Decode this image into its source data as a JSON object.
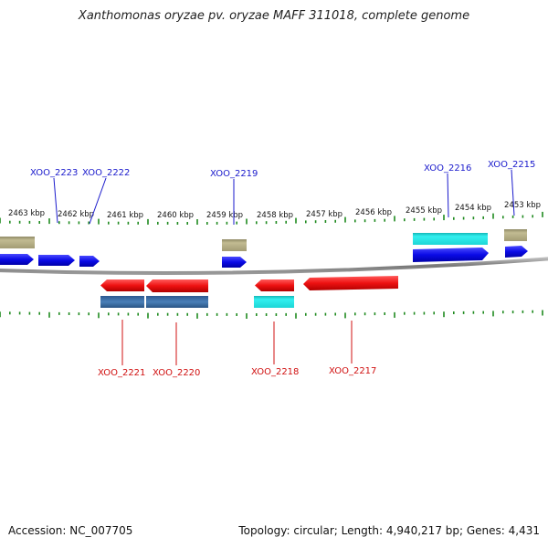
{
  "title": "Xanthomonas oryzae pv. oryzae MAFF 311018, complete genome",
  "footer": {
    "accession": "Accession: NC_007705",
    "summary": "Topology: circular; Length: 4,940,217 bp; Genes: 4,431"
  },
  "scale_labels": [
    "2463 kbp",
    "2462 kbp",
    "2461 kbp",
    "2460 kbp",
    "2459 kbp",
    "2458 kbp",
    "2457 kbp",
    "2456 kbp",
    "2455 kbp",
    "2454 kbp",
    "2453 kbp"
  ],
  "genes_forward": [
    "XOO_2223",
    "XOO_2222",
    "XOO_2219",
    "XOO_2216",
    "XOO_2215"
  ],
  "genes_reverse": [
    "XOO_2221",
    "XOO_2220",
    "XOO_2218",
    "XOO_2217"
  ],
  "colors": {
    "forward_label": "#1a1acc",
    "reverse_label": "#d01010",
    "cds_forward": "#0a0ae6",
    "cds_reverse": "#ee1111",
    "feature_olive": "#b5ad82",
    "feature_cyan": "#22e6e6",
    "feature_steel": "#3a6fa8",
    "tick": "#1f8a1f",
    "backbone": "#888888"
  }
}
